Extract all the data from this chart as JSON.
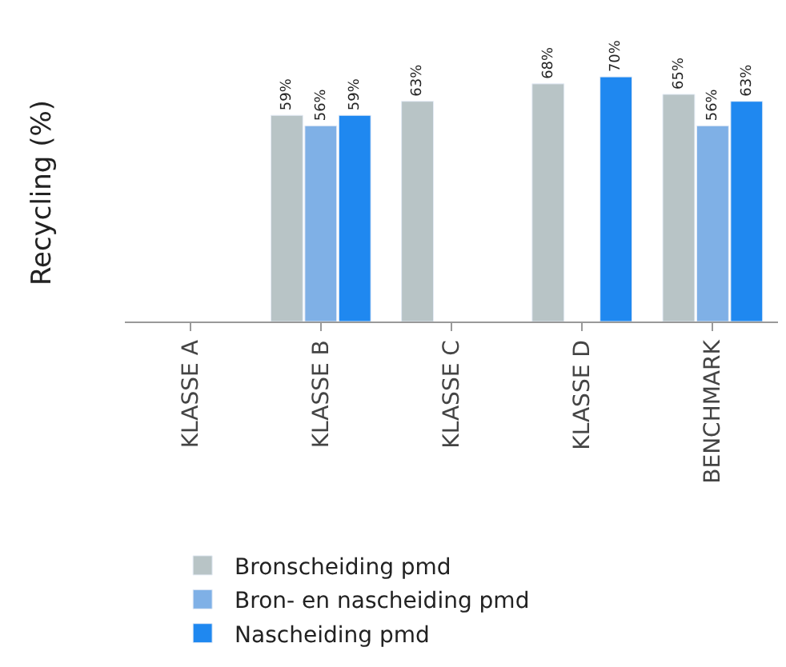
{
  "chart_data": {
    "type": "bar",
    "ylabel": "Recycling (%)",
    "categories": [
      "KLASSE A",
      "KLASSE B",
      "KLASSE C",
      "KLASSE D",
      "BENCHMARK"
    ],
    "series": [
      {
        "name": "Bronscheiding pmd",
        "color": "#b8c4c6",
        "values": [
          null,
          59,
          63,
          68,
          65
        ],
        "value_labels": [
          null,
          "59%",
          "63%",
          "68%",
          "65%"
        ]
      },
      {
        "name": "Bron- en nascheiding pmd",
        "color": "#7fb0e6",
        "values": [
          null,
          56,
          null,
          null,
          56
        ],
        "value_labels": [
          null,
          "56%",
          null,
          null,
          "56%"
        ]
      },
      {
        "name": "Nascheiding pmd",
        "color": "#1f88f0",
        "values": [
          null,
          59,
          null,
          70,
          63
        ],
        "value_labels": [
          null,
          "59%",
          null,
          "70%",
          "63%"
        ]
      }
    ],
    "legend": "bottom left"
  }
}
